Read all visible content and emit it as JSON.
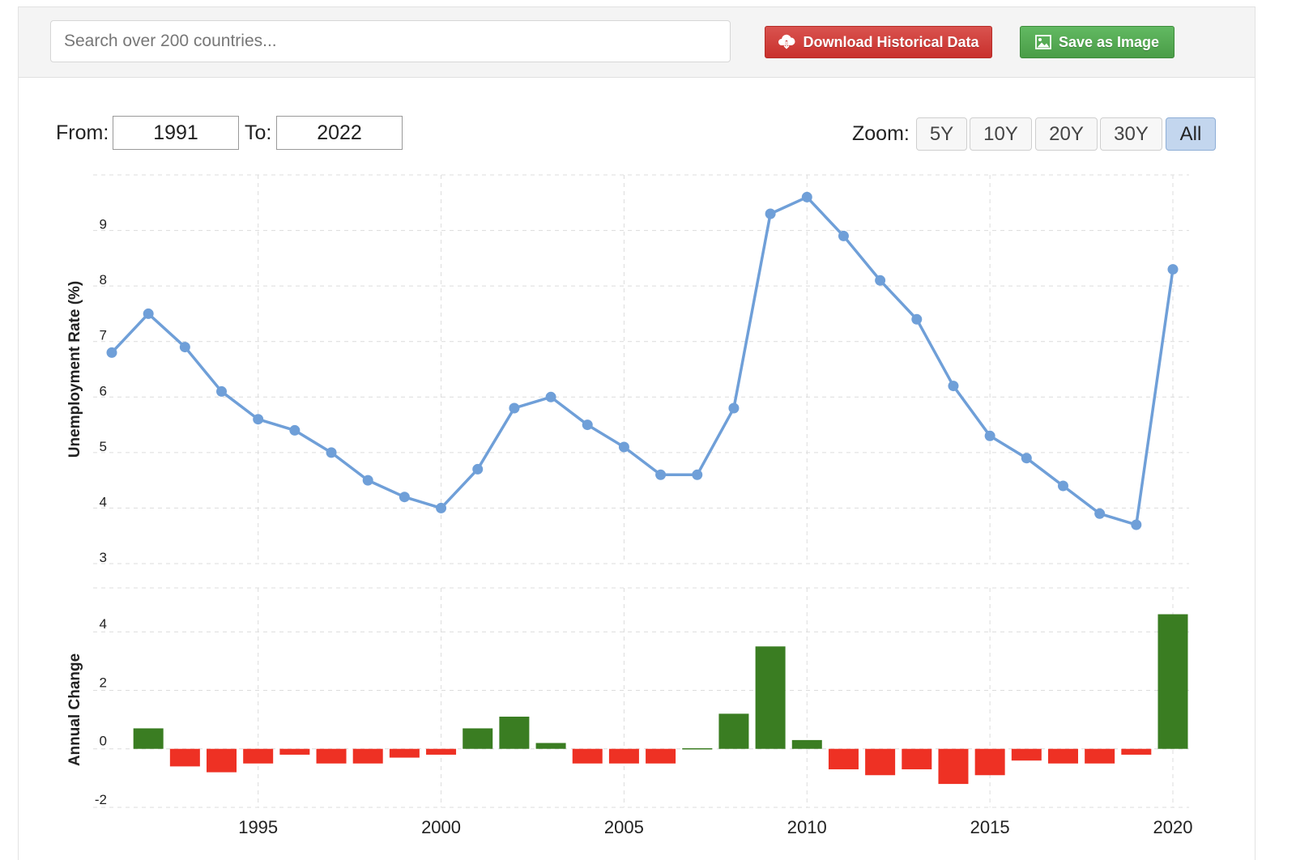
{
  "search": {
    "placeholder": "Search over 200 countries..."
  },
  "toolbar": {
    "download_label": "Download Historical Data",
    "save_label": "Save as Image",
    "colors": {
      "download": "#d9534f",
      "save": "#5cb85c"
    }
  },
  "range": {
    "from_label": "From:",
    "from_value": "1991",
    "to_label": "To:",
    "to_value": "2022"
  },
  "zoom": {
    "label": "Zoom:",
    "options": [
      "5Y",
      "10Y",
      "20Y",
      "30Y",
      "All"
    ],
    "active": "All"
  },
  "chart_data": [
    {
      "type": "line",
      "ylabel": "Unemployment Rate (%)",
      "ylim": [
        3,
        10
      ],
      "yticks": [
        3,
        4,
        5,
        6,
        7,
        8,
        9
      ],
      "grid": true,
      "color": "#6f9fd8",
      "x": [
        1991,
        1992,
        1993,
        1994,
        1995,
        1996,
        1997,
        1998,
        1999,
        2000,
        2001,
        2002,
        2003,
        2004,
        2005,
        2006,
        2007,
        2008,
        2009,
        2010,
        2011,
        2012,
        2013,
        2014,
        2015,
        2016,
        2017,
        2018,
        2019,
        2020
      ],
      "values": [
        6.8,
        7.5,
        6.9,
        6.1,
        5.6,
        5.4,
        5.0,
        4.5,
        4.2,
        4.0,
        4.7,
        5.8,
        6.0,
        5.5,
        5.1,
        4.6,
        4.6,
        5.8,
        9.3,
        9.6,
        8.9,
        8.1,
        7.4,
        6.2,
        5.3,
        4.9,
        4.4,
        3.9,
        3.7,
        8.3
      ]
    },
    {
      "type": "bar",
      "ylabel": "Annual Change",
      "ylim": [
        -2,
        5.5
      ],
      "yticks": [
        -2,
        0,
        2,
        4
      ],
      "grid": true,
      "positive_color": "#3a7d22",
      "negative_color": "#ee3124",
      "x": [
        1992,
        1993,
        1994,
        1995,
        1996,
        1997,
        1998,
        1999,
        2000,
        2001,
        2002,
        2003,
        2004,
        2005,
        2006,
        2007,
        2008,
        2009,
        2010,
        2011,
        2012,
        2013,
        2014,
        2015,
        2016,
        2017,
        2018,
        2019,
        2020
      ],
      "values": [
        0.7,
        -0.6,
        -0.8,
        -0.5,
        -0.2,
        -0.5,
        -0.5,
        -0.3,
        -0.2,
        0.7,
        1.1,
        0.2,
        -0.5,
        -0.5,
        -0.5,
        0.0,
        1.2,
        3.5,
        0.3,
        -0.7,
        -0.9,
        -0.7,
        -1.2,
        -0.9,
        -0.4,
        -0.5,
        -0.5,
        -0.2,
        4.6
      ]
    }
  ],
  "xaxis": {
    "ticks": [
      1995,
      2000,
      2005,
      2010,
      2015,
      2020
    ]
  }
}
